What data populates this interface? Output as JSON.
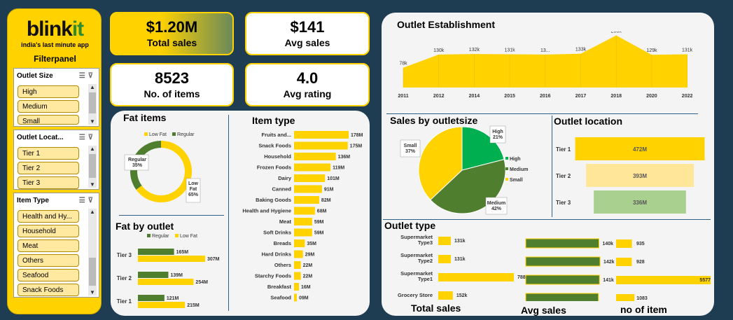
{
  "sidebar": {
    "logo_main": "blink",
    "logo_accent": "it",
    "tagline": "india's last minute app",
    "filter_title": "Filterpanel",
    "slicers": [
      {
        "title": "Outlet Size",
        "items": [
          "High",
          "Medium",
          "Small"
        ]
      },
      {
        "title": "Outlet Locat...",
        "items": [
          "Tier 1",
          "Tier 2",
          "Tier 3"
        ]
      },
      {
        "title": "Item Type",
        "items": [
          "Health and Hy...",
          "Household",
          "Meat",
          "Others",
          "Seafood",
          "Snack Foods"
        ]
      }
    ]
  },
  "kpis": {
    "total_sales": {
      "value": "$1.20M",
      "label": "Total sales"
    },
    "avg_sales": {
      "value": "$141",
      "label": "Avg sales"
    },
    "items": {
      "value": "8523",
      "label": "No. of items"
    },
    "avg_rating": {
      "value": "4.0",
      "label": "Avg rating"
    }
  },
  "titles": {
    "fat_items": "Fat items",
    "item_type": "Item type",
    "fat_by_outlet": "Fat by outlet",
    "outlet_establishment": "Outlet Establishment",
    "sales_by_outletsize": "Sales by outletsize",
    "outlet_location": "Outlet location",
    "outlet_type": "Outlet type",
    "total_sales_axis": "Total  sales",
    "avg_sales_axis": "Avg sales",
    "no_item_axis": "no of item"
  },
  "colors": {
    "yellow": "#ffd200",
    "green": "#4f7e2f",
    "bright_green": "#00b050",
    "light_yellow": "#ffe699",
    "light_green": "#a9d08e"
  },
  "chart_data": [
    {
      "type": "pie",
      "name": "fat_items",
      "donut": true,
      "legend": [
        "Low Fat",
        "Regular"
      ],
      "slices": [
        {
          "label": "Low Fat",
          "value": 65,
          "text": "Low\nFat\n65%"
        },
        {
          "label": "Regular",
          "value": 35,
          "text": "Regular\n35%"
        }
      ]
    },
    {
      "type": "bar",
      "name": "item_type",
      "categories": [
        "Fruits and...",
        "Snack Foods",
        "Household",
        "Frozen Foods",
        "Dairy",
        "Canned",
        "Baking Goods",
        "Health and Hygiene",
        "Meat",
        "Soft Drinks",
        "Breads",
        "Hard Drinks",
        "Others",
        "Starchy Foods",
        "Breakfast",
        "Seafood"
      ],
      "values": [
        178,
        175,
        136,
        119,
        101,
        91,
        82,
        68,
        59,
        59,
        35,
        29,
        22,
        22,
        16,
        9
      ],
      "labels": [
        "178M",
        "175M",
        "136M",
        "119M",
        "101M",
        "91M",
        "82M",
        "68M",
        "59M",
        "59M",
        "35M",
        "29M",
        "22M",
        "22M",
        "16M",
        "09M"
      ]
    },
    {
      "type": "bar",
      "name": "fat_by_outlet",
      "legend": [
        "Regular",
        "Low Fat"
      ],
      "categories": [
        "Tier 3",
        "Tier 2",
        "Tier 1"
      ],
      "series": [
        {
          "name": "Regular",
          "values": [
            165,
            139,
            121
          ],
          "labels": [
            "165M",
            "139M",
            "121M"
          ]
        },
        {
          "name": "Low Fat",
          "values": [
            307,
            254,
            215
          ],
          "labels": [
            "307M",
            "254M",
            "215M"
          ]
        }
      ]
    },
    {
      "type": "area",
      "name": "outlet_establishment",
      "x": [
        "2011",
        "2012",
        "2014",
        "2015",
        "2016",
        "2017",
        "2018",
        "2020",
        "2022"
      ],
      "values": [
        78,
        130,
        132,
        131,
        130,
        133,
        205,
        129,
        131
      ],
      "labels": [
        "78k",
        "130k",
        "132k",
        "131k",
        "13...",
        "133k",
        "205k",
        "129k",
        "131k"
      ]
    },
    {
      "type": "pie",
      "name": "sales_by_outletsize",
      "legend": [
        "High",
        "Medium",
        "Small"
      ],
      "slices": [
        {
          "label": "High",
          "value": 21,
          "text": "High\n21%"
        },
        {
          "label": "Medium",
          "value": 42,
          "text": "Medium\n42%"
        },
        {
          "label": "Small",
          "value": 37,
          "text": "Small\n37%"
        }
      ]
    },
    {
      "type": "bar",
      "name": "outlet_location",
      "categories": [
        "Tier 1",
        "Tier 2",
        "Tier 3"
      ],
      "values": [
        472,
        393,
        336
      ],
      "labels": [
        "472M",
        "393M",
        "336M"
      ]
    },
    {
      "type": "bar",
      "name": "outlet_type",
      "categories": [
        "Supermarket\nType3",
        "Supermarket\nType2",
        "Supermarket\nType1",
        "Grocery Store"
      ],
      "series": [
        {
          "name": "Total  sales",
          "values": [
            131,
            131,
            788,
            152
          ],
          "labels": [
            "131k",
            "131k",
            "788k",
            "152k"
          ]
        },
        {
          "name": "Avg sales",
          "values": [
            140,
            142,
            141,
            139
          ],
          "labels": [
            "140k",
            "142k",
            "141k",
            ""
          ]
        },
        {
          "name": "no of item",
          "values": [
            935,
            928,
            5577,
            1083
          ],
          "labels": [
            "935",
            "928",
            "5577",
            "1083"
          ]
        }
      ]
    }
  ]
}
